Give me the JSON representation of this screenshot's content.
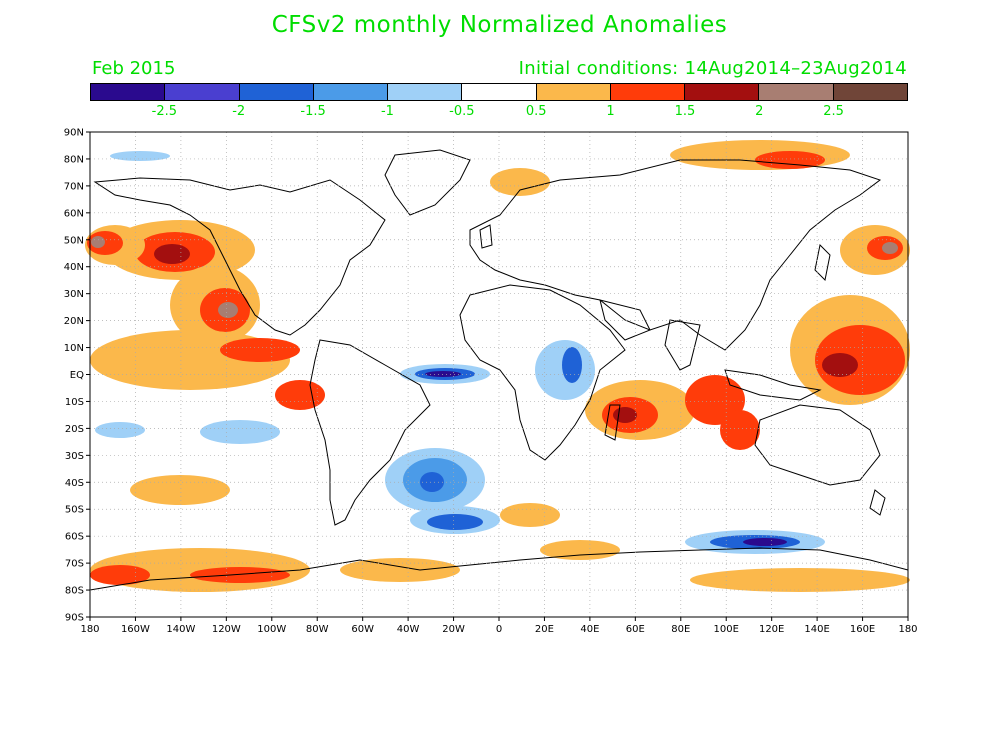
{
  "title": "CFSv2 monthly Normalized Anomalies",
  "month": "Feb 2015",
  "initial_conditions": "Initial conditions: 14Aug2014–23Aug2014",
  "colorbar": {
    "colors": [
      "#2a0a8e",
      "#4a3fd0",
      "#1f62d6",
      "#4b9be8",
      "#9fd0f7",
      "#ffffff",
      "#fbb84b",
      "#ff3c0a",
      "#a30f0f",
      "#a87e72",
      "#704538"
    ],
    "labels": [
      "-2.5",
      "-2",
      "-1.5",
      "-1",
      "-0.5",
      "0.5",
      "1",
      "1.5",
      "2",
      "2.5"
    ]
  },
  "map": {
    "lat_labels": [
      "90N",
      "80N",
      "70N",
      "60N",
      "50N",
      "40N",
      "30N",
      "20N",
      "10N",
      "EQ",
      "10S",
      "20S",
      "30S",
      "40S",
      "50S",
      "60S",
      "70S",
      "80S",
      "90S"
    ],
    "lon_labels": [
      "180",
      "160W",
      "140W",
      "120W",
      "100W",
      "80W",
      "60W",
      "40W",
      "20W",
      "0",
      "20E",
      "40E",
      "60E",
      "80E",
      "100E",
      "120E",
      "140E",
      "160E",
      "180"
    ],
    "grid": true
  }
}
